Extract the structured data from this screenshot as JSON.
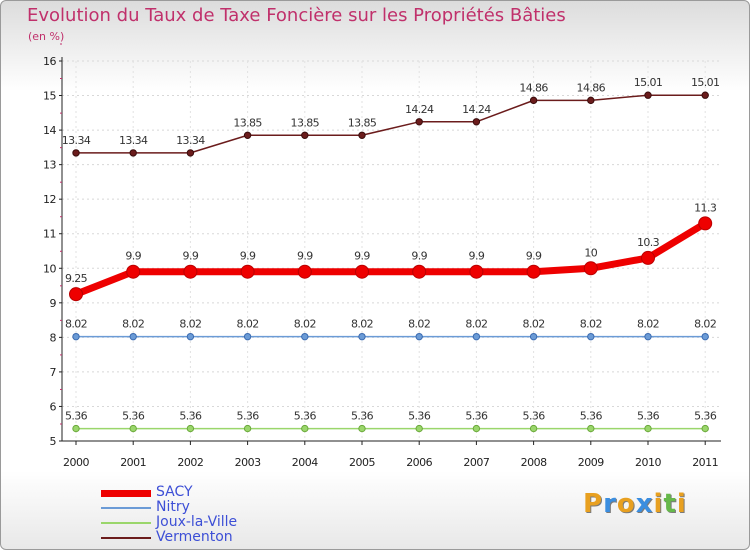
{
  "chart_data": {
    "type": "line",
    "title": "Evolution du Taux de Taxe Foncière sur les Propriétés Bâties",
    "ylabel": "(en %)",
    "xlabel": "",
    "ylim": [
      5,
      16
    ],
    "yticks": [
      "5",
      "6",
      "7",
      "8",
      "9",
      "10",
      "11",
      "12",
      "13",
      "14",
      "15",
      "16"
    ],
    "categories": [
      "2000",
      "2001",
      "2002",
      "2003",
      "2004",
      "2005",
      "2006",
      "2007",
      "2008",
      "2009",
      "2010",
      "2011"
    ],
    "grid": true,
    "series": [
      {
        "name": "Vermenton",
        "color": "#6b1c1c",
        "values": [
          13.34,
          13.34,
          13.34,
          13.85,
          13.85,
          13.85,
          14.24,
          14.24,
          14.86,
          14.86,
          15.01,
          15.01
        ],
        "labels": [
          "13.34",
          "13.34",
          "13.34",
          "13.85",
          "13.85",
          "13.85",
          "14.24",
          "14.24",
          "14.86",
          "14.86",
          "15.01",
          "15.01"
        ]
      },
      {
        "name": "SACY",
        "color": "#ee0000",
        "values": [
          9.25,
          9.9,
          9.9,
          9.9,
          9.9,
          9.9,
          9.9,
          9.9,
          9.9,
          10,
          10.3,
          11.3
        ],
        "labels": [
          "9.25",
          "9.9",
          "9.9",
          "9.9",
          "9.9",
          "9.9",
          "9.9",
          "9.9",
          "9.9",
          "10",
          "10.3",
          "11.3"
        ]
      },
      {
        "name": "Nitry",
        "color": "#6b9bd6",
        "values": [
          8.02,
          8.02,
          8.02,
          8.02,
          8.02,
          8.02,
          8.02,
          8.02,
          8.02,
          8.02,
          8.02,
          8.02
        ],
        "labels": [
          "8.02",
          "8.02",
          "8.02",
          "8.02",
          "8.02",
          "8.02",
          "8.02",
          "8.02",
          "8.02",
          "8.02",
          "8.02",
          "8.02"
        ]
      },
      {
        "name": "Joux-la-Ville",
        "color": "#9ad66b",
        "values": [
          5.36,
          5.36,
          5.36,
          5.36,
          5.36,
          5.36,
          5.36,
          5.36,
          5.36,
          5.36,
          5.36,
          5.36
        ],
        "labels": [
          "5.36",
          "5.36",
          "5.36",
          "5.36",
          "5.36",
          "5.36",
          "5.36",
          "5.36",
          "5.36",
          "5.36",
          "5.36",
          "5.36"
        ]
      }
    ],
    "legend": [
      "SACY",
      "Nitry",
      "Joux-la-Ville",
      "Vermenton"
    ]
  },
  "logo": {
    "letters": [
      "P",
      "r",
      "o",
      "x",
      "i",
      "t",
      "i"
    ],
    "colors": [
      "#e8a020",
      "#3b8ee0",
      "#e8a020",
      "#3b8ee0",
      "#e8a020",
      "#66b84a",
      "#e8a020"
    ]
  }
}
